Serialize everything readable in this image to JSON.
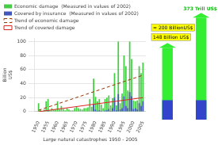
{
  "chart_data": [
    {
      "type": "bar",
      "xlabel": "Large natural catastrophes 1950 - 2005",
      "ylabel": "Billion\nUS$",
      "x": [
        1950,
        1951,
        1952,
        1953,
        1954,
        1955,
        1956,
        1957,
        1958,
        1959,
        1960,
        1961,
        1962,
        1963,
        1964,
        1965,
        1966,
        1967,
        1968,
        1969,
        1970,
        1971,
        1972,
        1973,
        1974,
        1975,
        1976,
        1977,
        1978,
        1979,
        1980,
        1981,
        1982,
        1983,
        1984,
        1985,
        1986,
        1987,
        1988,
        1989,
        1990,
        1991,
        1992,
        1993,
        1994,
        1995,
        1996,
        1997,
        1998,
        1999,
        2000,
        2001,
        2002,
        2003,
        2004,
        2005
      ],
      "series": [
        {
          "name": "Economic damage  (Measured in values of 2002)",
          "color": "#44cc44",
          "values": [
            12,
            3,
            1,
            3,
            15,
            18,
            2,
            5,
            3,
            3,
            15,
            3,
            8,
            4,
            2,
            5,
            3,
            2,
            2,
            5,
            7,
            5,
            4,
            3,
            5,
            5,
            6,
            18,
            7,
            47,
            21,
            15,
            18,
            10,
            5,
            18,
            20,
            23,
            9,
            19,
            55,
            9,
            100,
            12,
            26,
            80,
            65,
            30,
            100,
            75,
            16,
            15,
            16,
            65,
            55,
            70
          ]
        },
        {
          "name": "Covered by insurance  (Measured in values of 2002)",
          "color": "#4455bb",
          "values": [
            0,
            0,
            0,
            0,
            0,
            2,
            0,
            0,
            0,
            0,
            0,
            0,
            0,
            0,
            0,
            0,
            0,
            0,
            0,
            0,
            0,
            0,
            0,
            0,
            0,
            0,
            0,
            0,
            0,
            10,
            3,
            1,
            2,
            1,
            0,
            2,
            2,
            4,
            1,
            5,
            20,
            2,
            25,
            3,
            5,
            22,
            8,
            5,
            28,
            22,
            4,
            5,
            3,
            12,
            8,
            15
          ]
        },
        {
          "name": "Trend of economic damage",
          "type": "line",
          "line_style": "dashed",
          "color": "#993300",
          "x": [
            1950,
            2005
          ],
          "values": [
            2,
            52
          ]
        },
        {
          "name": "Trend of covered damage",
          "type": "line",
          "line_style": "solid",
          "color": "#dd2222",
          "x": [
            1950,
            2005
          ],
          "values": [
            0,
            20
          ]
        }
      ],
      "xlim": [
        1948,
        2006.5
      ],
      "xticks": [
        1950,
        1955,
        1960,
        1965,
        1970,
        1975,
        1980,
        1985,
        1990,
        1995,
        2000,
        2005
      ],
      "ylim": [
        0,
        105
      ],
      "yticks": [
        0,
        20,
        40,
        60,
        80,
        100
      ],
      "grid": "y",
      "legend": "upper left"
    },
    {
      "type": "bar",
      "categories": [
        null,
        null
      ],
      "series": [
        {
          "color": "#33ee33",
          "values": [
            148,
            210
          ]
        },
        {
          "color": "#3344cc",
          "values": [
            40,
            40
          ]
        }
      ],
      "ylim": [
        0,
        220
      ],
      "tick_labels": false,
      "grid": false,
      "annotations": [
        "148 Billion US$",
        "≈ 200 BillionUS$",
        "373 Trill US$"
      ]
    }
  ]
}
